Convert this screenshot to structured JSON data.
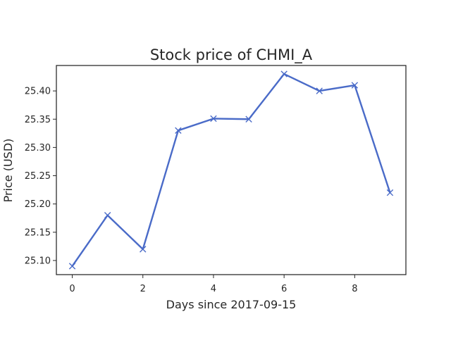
{
  "chart_data": {
    "type": "line",
    "title": "Stock price of CHMI_A",
    "xlabel": "Days since 2017-09-15",
    "ylabel": "Price (USD)",
    "x": [
      0,
      1,
      2,
      3,
      4,
      5,
      6,
      7,
      8,
      9
    ],
    "series": [
      {
        "values": [
          25.09,
          25.18,
          25.12,
          25.33,
          25.351,
          25.35,
          25.43,
          25.4,
          25.41,
          25.22
        ],
        "color": "#4a6bc8",
        "marker": "x"
      }
    ],
    "xlim": [
      -0.45,
      9.45
    ],
    "ylim": [
      25.075,
      25.445
    ],
    "xticks": [
      0,
      2,
      4,
      6,
      8
    ],
    "xtick_labels": [
      "0",
      "2",
      "4",
      "6",
      "8"
    ],
    "yticks": [
      25.1,
      25.15,
      25.2,
      25.25,
      25.3,
      25.35,
      25.4
    ],
    "ytick_labels": [
      "25.10",
      "25.15",
      "25.20",
      "25.25",
      "25.30",
      "25.35",
      "25.40"
    ],
    "grid": false,
    "legend": "none"
  }
}
